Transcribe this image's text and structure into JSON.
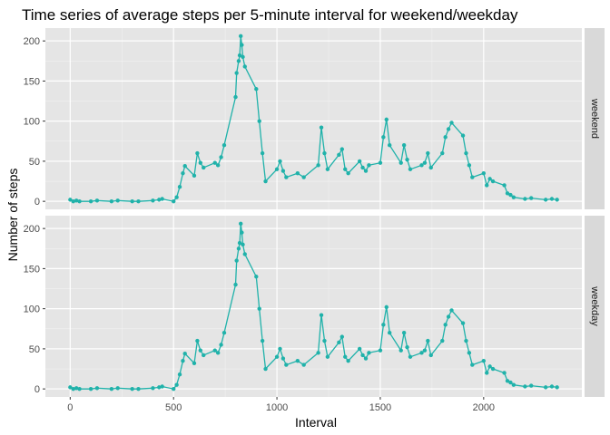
{
  "chart_data": {
    "type": "line",
    "title": "Time series of average steps per 5-minute interval for weekend/weekday",
    "xlabel": "Interval",
    "ylabel": "Number of steps",
    "xlim": [
      -120,
      2475
    ],
    "ylim": [
      -10,
      216
    ],
    "x_ticks": [
      0,
      500,
      1000,
      1500,
      2000
    ],
    "y_ticks": [
      0,
      50,
      100,
      150,
      200
    ],
    "line_color": "#20B2AA",
    "panel_bg": "#E5E5E5",
    "strip_bg": "#D9D9D9",
    "facets": [
      "weekend",
      "weekday"
    ],
    "series": [
      {
        "x": [
          0,
          15,
          30,
          45,
          100,
          130,
          200,
          230,
          300,
          330,
          400,
          430,
          445,
          500,
          515,
          530,
          545,
          555,
          600,
          615,
          630,
          645,
          700,
          715,
          730,
          745,
          800,
          805,
          815,
          820,
          825,
          830,
          835,
          845,
          900,
          915,
          930,
          945,
          1000,
          1015,
          1030,
          1045,
          1100,
          1130,
          1200,
          1215,
          1230,
          1245,
          1300,
          1315,
          1330,
          1345,
          1400,
          1415,
          1430,
          1445,
          1500,
          1515,
          1530,
          1545,
          1600,
          1615,
          1630,
          1645,
          1700,
          1715,
          1730,
          1745,
          1800,
          1815,
          1830,
          1845,
          1900,
          1915,
          1930,
          1945,
          2000,
          2015,
          2030,
          2045,
          2100,
          2115,
          2130,
          2145,
          2200,
          2230,
          2300,
          2330,
          2355
        ],
        "y": [
          2,
          0,
          1,
          0,
          0,
          1,
          0,
          1,
          0,
          0,
          1,
          2,
          3,
          0,
          5,
          18,
          35,
          44,
          32,
          60,
          48,
          42,
          48,
          45,
          55,
          70,
          130,
          160,
          175,
          182,
          206,
          195,
          180,
          168,
          140,
          100,
          60,
          25,
          40,
          50,
          38,
          30,
          35,
          30,
          45,
          92,
          60,
          40,
          58,
          65,
          40,
          35,
          50,
          42,
          38,
          45,
          48,
          80,
          102,
          70,
          48,
          70,
          52,
          40,
          45,
          48,
          60,
          42,
          60,
          80,
          90,
          98,
          82,
          60,
          45,
          30,
          35,
          20,
          28,
          25,
          20,
          10,
          8,
          5,
          3,
          4,
          2,
          3,
          2
        ]
      }
    ]
  }
}
